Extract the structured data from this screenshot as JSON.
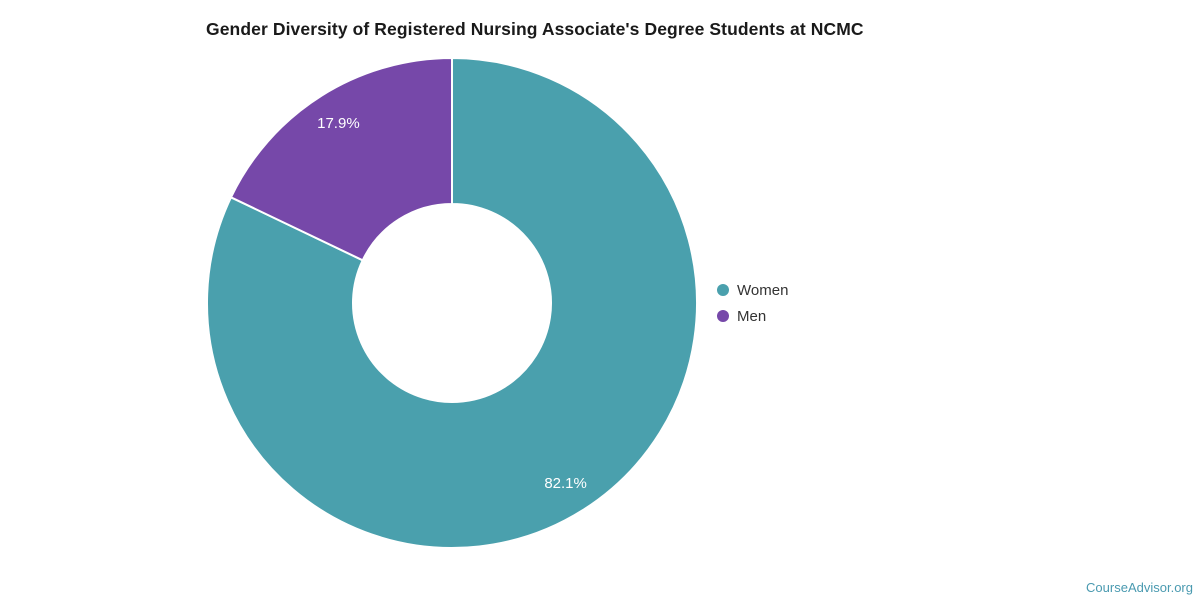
{
  "chart_data": {
    "type": "pie",
    "donut": true,
    "title": "Gender Diversity of Registered Nursing Associate's Degree Students at NCMC",
    "series": [
      {
        "name": "Women",
        "value": 82.1,
        "label": "82.1%",
        "color": "#4AA0AD"
      },
      {
        "name": "Men",
        "value": 17.9,
        "label": "17.9%",
        "color": "#7648A9"
      }
    ],
    "start_angle_deg": -90,
    "direction": "clockwise",
    "slice_label_color": "#ffffff",
    "slice_border_color": "#ffffff",
    "legend_position": "right",
    "legend_text_color": "#333333"
  },
  "footer": {
    "brand": "CourseAdvisor.org",
    "color": "#4A9AB0"
  }
}
